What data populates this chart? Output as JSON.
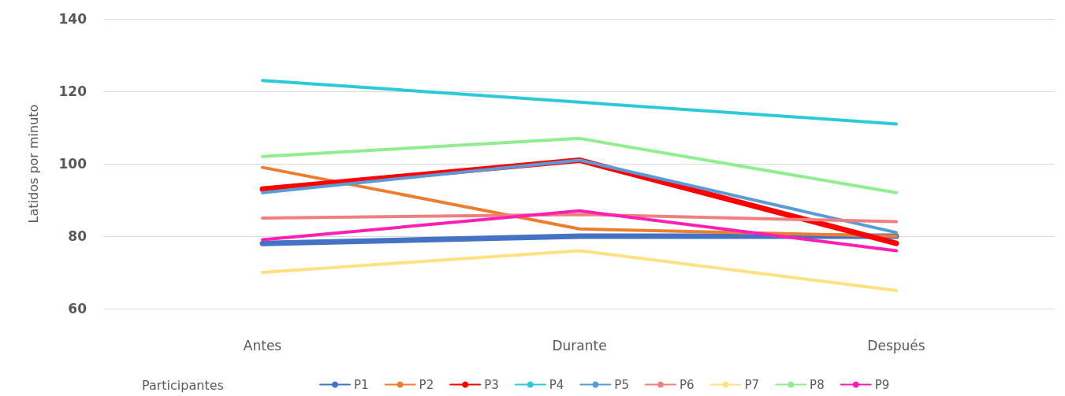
{
  "chart_data": {
    "type": "line",
    "ylabel": "Latidos por minuto",
    "legend_title": "Participantes",
    "categories": [
      "Antes",
      "Durante",
      "Después"
    ],
    "ylim": [
      60,
      140
    ],
    "yticks": [
      60,
      80,
      100,
      120,
      140
    ],
    "grid": "y",
    "legend": "bottom",
    "marker": "none",
    "line_style": "solid",
    "series": [
      {
        "name": "P1",
        "color": "#4472c4",
        "values": [
          78,
          80,
          80
        ]
      },
      {
        "name": "P2",
        "color": "#ed7d31",
        "values": [
          99,
          82,
          80
        ]
      },
      {
        "name": "P3",
        "color": "#ff0000",
        "values": [
          93,
          101,
          78
        ]
      },
      {
        "name": "P4",
        "color": "#2ec9d9",
        "values": [
          123,
          117,
          111
        ]
      },
      {
        "name": "P5",
        "color": "#5b9bd5",
        "values": [
          92,
          101,
          81
        ]
      },
      {
        "name": "P6",
        "color": "#f08080",
        "values": [
          85,
          86,
          84
        ]
      },
      {
        "name": "P7",
        "color": "#ffe083",
        "values": [
          70,
          76,
          65
        ]
      },
      {
        "name": "P8",
        "color": "#90ee90",
        "values": [
          102,
          107,
          92
        ]
      },
      {
        "name": "P9",
        "color": "#ff1fb4",
        "values": [
          79,
          87,
          76
        ]
      }
    ]
  }
}
